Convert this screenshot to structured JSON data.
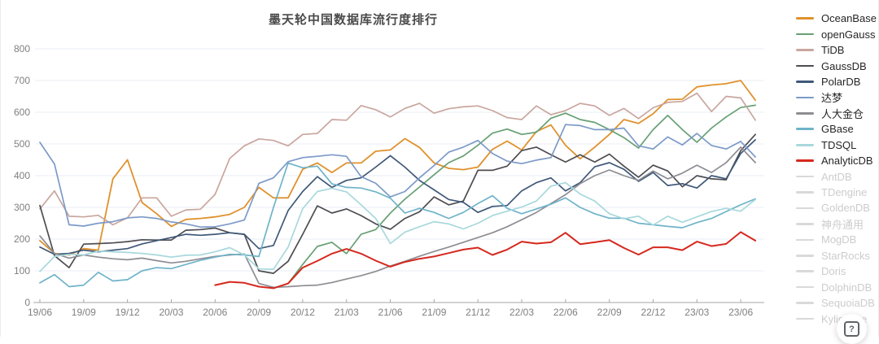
{
  "title": "墨天轮中国数据库流行度排行",
  "help_button_label": "?",
  "colors": {
    "title": "#4a4a4a",
    "axis_text": "#7f7f7f",
    "axis_line": "#a6a6a6",
    "gridline": "#e9eef6",
    "legend_text": "#262626",
    "disabled_swatch": "#d9d9d9",
    "disabled_text": "#cccccc",
    "background": "#ffffff"
  },
  "chart_data": {
    "type": "line",
    "title": "墨天轮中国数据库流行度排行",
    "xlabel": "",
    "ylabel": "",
    "ylim": [
      0,
      800
    ],
    "grid": "horizontal",
    "legend_position": "right",
    "x": [
      "19/06",
      "19/07",
      "19/08",
      "19/09",
      "19/10",
      "19/11",
      "19/12",
      "20/01",
      "20/02",
      "20/03",
      "20/04",
      "20/05",
      "20/06",
      "20/07",
      "20/08",
      "20/09",
      "20/10",
      "20/11",
      "20/12",
      "21/01",
      "21/02",
      "21/03",
      "21/04",
      "21/05",
      "21/06",
      "21/07",
      "21/08",
      "21/09",
      "21/10",
      "21/11",
      "21/12",
      "22/01",
      "22/02",
      "22/03",
      "22/04",
      "22/05",
      "22/06",
      "22/07",
      "22/08",
      "22/09",
      "22/10",
      "22/11",
      "22/12",
      "23/01",
      "23/02",
      "23/03",
      "23/04",
      "23/05",
      "23/06",
      "23/07"
    ],
    "x_tick_labels": [
      "19/06",
      "19/09",
      "19/12",
      "20/03",
      "20/06",
      "20/09",
      "20/12",
      "21/03",
      "21/06",
      "21/09",
      "21/12",
      "22/03",
      "22/06",
      "22/09",
      "22/12",
      "23/03",
      "23/06"
    ],
    "y_ticks": [
      0,
      100,
      200,
      300,
      400,
      500,
      600,
      700,
      800
    ],
    "series": [
      {
        "name": "OceanBase",
        "color": "#e0912c",
        "width": 1.8,
        "values": [
          195,
          155,
          150,
          170,
          165,
          390,
          450,
          315,
          280,
          240,
          262,
          265,
          270,
          278,
          300,
          363,
          330,
          330,
          420,
          440,
          410,
          440,
          440,
          477,
          481,
          517,
          489,
          440,
          423,
          419,
          427,
          483,
          509,
          481,
          539,
          560,
          496,
          453,
          490,
          530,
          577,
          565,
          595,
          640,
          641,
          680,
          686,
          690,
          700,
          638
        ]
      },
      {
        "name": "openGauss",
        "color": "#67a074",
        "width": 1.7,
        "values": [
          null,
          null,
          null,
          null,
          null,
          null,
          null,
          null,
          null,
          null,
          null,
          null,
          null,
          null,
          null,
          null,
          45,
          60,
          120,
          177,
          190,
          154,
          215,
          230,
          282,
          326,
          364,
          403,
          441,
          462,
          496,
          534,
          547,
          530,
          537,
          581,
          597,
          577,
          568,
          545,
          520,
          487,
          545,
          590,
          545,
          505,
          550,
          585,
          615,
          622
        ]
      },
      {
        "name": "TiDB",
        "color": "#c9a69e",
        "width": 1.7,
        "values": [
          295,
          352,
          272,
          270,
          275,
          245,
          267,
          330,
          330,
          272,
          292,
          294,
          341,
          454,
          494,
          516,
          511,
          494,
          530,
          533,
          577,
          575,
          621,
          608,
          585,
          612,
          628,
          597,
          611,
          617,
          620,
          605,
          583,
          577,
          620,
          592,
          605,
          628,
          620,
          590,
          612,
          580,
          614,
          631,
          634,
          660,
          602,
          650,
          645,
          575
        ]
      },
      {
        "name": "GaussDB",
        "color": "#4d4d52",
        "width": 1.7,
        "values": [
          306,
          148,
          110,
          184,
          186,
          188,
          192,
          198,
          197,
          197,
          228,
          230,
          235,
          220,
          215,
          100,
          92,
          130,
          215,
          305,
          282,
          295,
          274,
          248,
          231,
          265,
          286,
          333,
          308,
          320,
          417,
          417,
          430,
          479,
          490,
          466,
          443,
          466,
          443,
          468,
          430,
          395,
          433,
          415,
          365,
          400,
          390,
          387,
          479,
          530
        ]
      },
      {
        "name": "PolarDB",
        "color": "#3f5878",
        "width": 1.7,
        "values": [
          175,
          152,
          155,
          165,
          160,
          165,
          170,
          185,
          195,
          205,
          215,
          212,
          215,
          220,
          215,
          170,
          180,
          290,
          350,
          397,
          363,
          385,
          393,
          427,
          463,
          427,
          385,
          355,
          325,
          316,
          284,
          303,
          306,
          352,
          378,
          393,
          352,
          378,
          428,
          441,
          420,
          382,
          410,
          369,
          375,
          361,
          400,
          390,
          470,
          513
        ]
      },
      {
        "name": "达梦",
        "color": "#7c9ac8",
        "width": 1.7,
        "values": [
          505,
          437,
          245,
          241,
          250,
          255,
          267,
          270,
          265,
          254,
          248,
          238,
          239,
          248,
          260,
          376,
          393,
          444,
          457,
          461,
          466,
          461,
          397,
          376,
          333,
          350,
          393,
          432,
          474,
          490,
          511,
          470,
          446,
          438,
          449,
          457,
          561,
          558,
          545,
          545,
          550,
          494,
          484,
          522,
          497,
          533,
          495,
          484,
          508,
          459
        ]
      },
      {
        "name": "人大金仓",
        "color": "#8d8d93",
        "width": 1.7,
        "values": [
          210,
          155,
          140,
          150,
          143,
          138,
          135,
          140,
          132,
          125,
          130,
          138,
          145,
          150,
          153,
          60,
          48,
          50,
          53,
          55,
          63,
          74,
          85,
          98,
          115,
          130,
          146,
          161,
          175,
          190,
          205,
          220,
          239,
          261,
          284,
          312,
          340,
          375,
          400,
          418,
          400,
          385,
          415,
          390,
          408,
          433,
          410,
          441,
          490,
          441
        ]
      },
      {
        "name": "GBase",
        "color": "#6fb3c9",
        "width": 1.7,
        "values": [
          62,
          88,
          50,
          55,
          95,
          68,
          72,
          100,
          110,
          107,
          120,
          133,
          143,
          152,
          150,
          145,
          300,
          440,
          425,
          430,
          374,
          363,
          361,
          349,
          329,
          282,
          297,
          284,
          265,
          284,
          312,
          337,
          297,
          280,
          295,
          310,
          330,
          300,
          280,
          266,
          266,
          250,
          245,
          240,
          236,
          252,
          265,
          287,
          308,
          327
        ]
      },
      {
        "name": "TDSQL",
        "color": "#a8d8dc",
        "width": 1.7,
        "values": [
          98,
          145,
          152,
          150,
          162,
          160,
          158,
          155,
          150,
          143,
          149,
          150,
          160,
          173,
          150,
          106,
          105,
          175,
          296,
          350,
          360,
          349,
          308,
          265,
          186,
          222,
          239,
          255,
          248,
          232,
          250,
          274,
          288,
          301,
          320,
          367,
          378,
          342,
          320,
          280,
          264,
          272,
          244,
          272,
          253,
          270,
          287,
          297,
          288,
          325
        ]
      },
      {
        "name": "AnalyticDB",
        "color": "#d5281d",
        "width": 2,
        "values": [
          null,
          null,
          null,
          null,
          null,
          null,
          null,
          null,
          null,
          null,
          null,
          null,
          55,
          65,
          62,
          50,
          45,
          60,
          110,
          131,
          154,
          169,
          154,
          132,
          113,
          128,
          138,
          145,
          156,
          167,
          173,
          150,
          167,
          192,
          186,
          190,
          220,
          184,
          190,
          197,
          172,
          151,
          174,
          174,
          165,
          192,
          178,
          185,
          222,
          195
        ]
      }
    ],
    "legend_disabled": [
      "AntDB",
      "TDengine",
      "GoldenDB",
      "神舟通用",
      "MogDB",
      "StarRocks",
      "Doris",
      "DolphinDB",
      "SequoiaDB",
      "Kyligence"
    ]
  }
}
